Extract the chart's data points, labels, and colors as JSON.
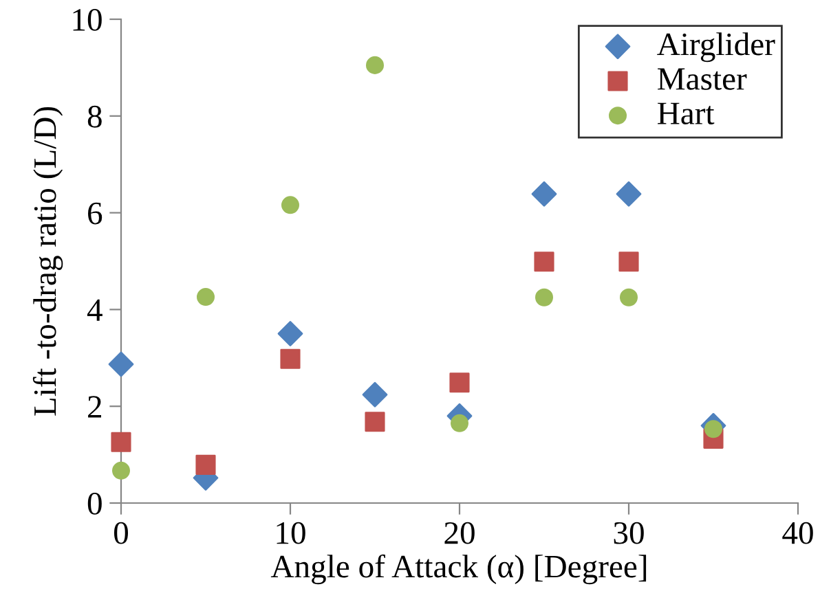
{
  "chart_data": {
    "type": "scatter",
    "xlabel": "Angle of Attack (α) [Degree]",
    "ylabel": "Lift -to-drag ratio (L/D)",
    "x": [
      0,
      5,
      10,
      15,
      20,
      25,
      30,
      35
    ],
    "series": [
      {
        "name": "Airglider",
        "color": "#4f81bd",
        "marker": "diamond",
        "values": [
          2.87,
          0.52,
          3.5,
          2.24,
          1.8,
          6.39,
          6.39,
          1.6
        ]
      },
      {
        "name": "Master",
        "color": "#c0504d",
        "marker": "square",
        "values": [
          1.26,
          0.79,
          2.98,
          1.68,
          2.49,
          4.99,
          4.99,
          1.33
        ]
      },
      {
        "name": "Hart",
        "color": "#9bbb59",
        "marker": "circle",
        "values": [
          0.67,
          4.26,
          6.16,
          9.05,
          1.65,
          4.25,
          4.25,
          1.53
        ]
      }
    ],
    "xlim": [
      0,
      40
    ],
    "xticks": [
      0,
      10,
      20,
      30,
      40
    ],
    "ylim": [
      0,
      10
    ],
    "yticks": [
      0,
      2,
      4,
      6,
      8,
      10
    ],
    "grid": false,
    "legend": "top right"
  }
}
